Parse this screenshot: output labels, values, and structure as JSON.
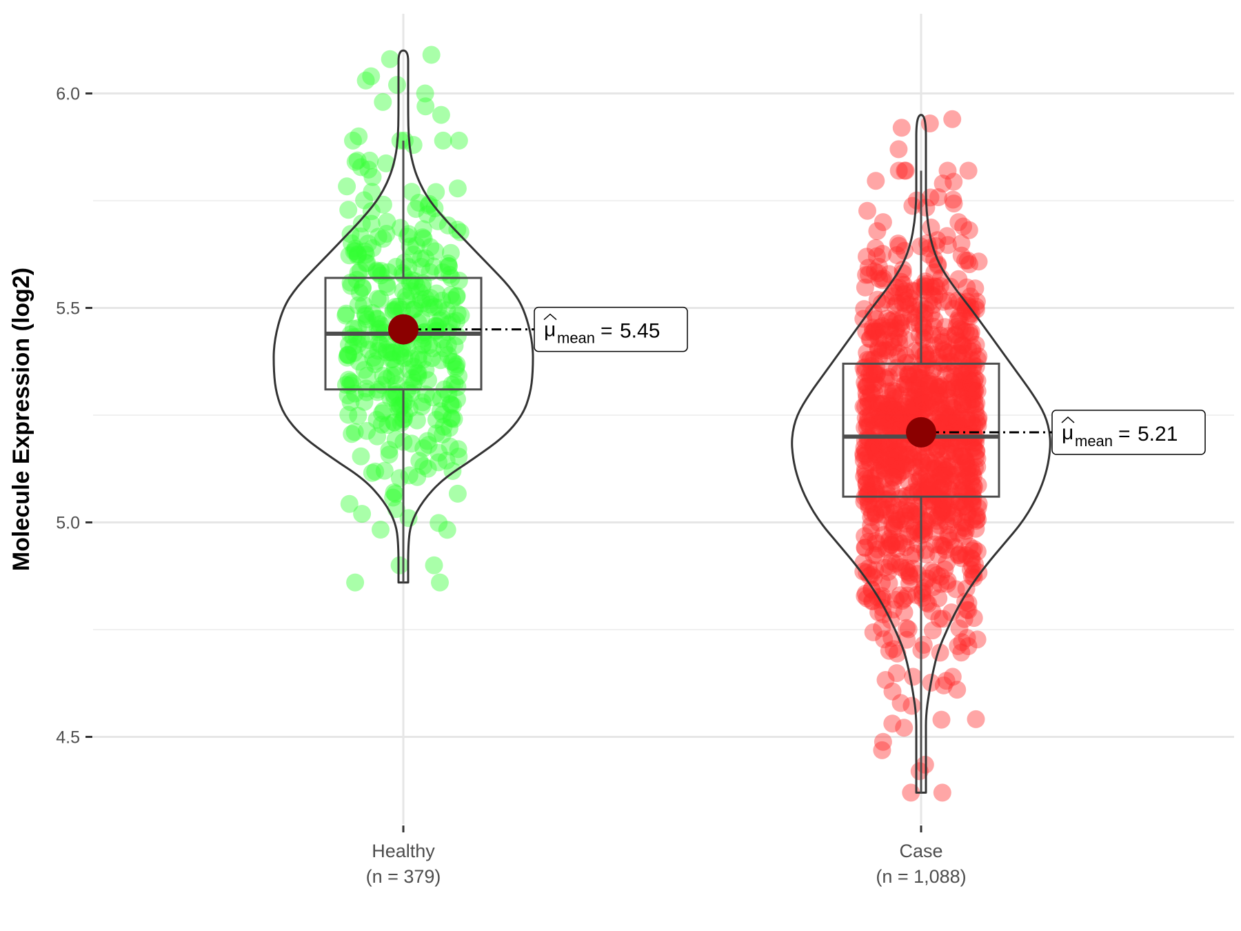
{
  "chart_data": {
    "type": "violin",
    "ylabel": "Molecule Expression (log2)",
    "xlabel": "",
    "ylim": [
      4.3,
      6.18
    ],
    "yticks": [
      4.5,
      5.0,
      5.5,
      6.0
    ],
    "ytick_labels": [
      "4.5",
      "5.0",
      "5.5",
      "6.0"
    ],
    "grid": true,
    "categories": [
      "Healthy",
      "Case"
    ],
    "groups": [
      {
        "name": "Healthy",
        "count_label": "(n = 379)",
        "n": 379,
        "color": "#33ff33",
        "box": {
          "min": 4.86,
          "q1": 5.31,
          "median": 5.44,
          "q3": 5.57,
          "max": 5.89
        },
        "mean": 5.45,
        "mean_label": "5.45",
        "violin_range": [
          4.86,
          6.1
        ],
        "density": [
          [
            4.86,
            0.02
          ],
          [
            4.95,
            0.02
          ],
          [
            5.0,
            0.06
          ],
          [
            5.05,
            0.15
          ],
          [
            5.1,
            0.3
          ],
          [
            5.15,
            0.55
          ],
          [
            5.2,
            0.78
          ],
          [
            5.25,
            0.92
          ],
          [
            5.3,
            0.98
          ],
          [
            5.35,
            1.0
          ],
          [
            5.42,
            1.0
          ],
          [
            5.5,
            0.93
          ],
          [
            5.55,
            0.82
          ],
          [
            5.6,
            0.66
          ],
          [
            5.65,
            0.5
          ],
          [
            5.7,
            0.34
          ],
          [
            5.75,
            0.2
          ],
          [
            5.8,
            0.11
          ],
          [
            5.85,
            0.06
          ],
          [
            5.9,
            0.04
          ],
          [
            5.95,
            0.03
          ],
          [
            6.0,
            0.02
          ],
          [
            6.05,
            0.02
          ],
          [
            6.1,
            0.02
          ]
        ],
        "outliers": [
          6.09,
          6.08,
          6.04,
          6.03,
          6.02,
          6.0,
          5.98,
          5.97,
          5.95,
          5.9,
          5.88,
          4.9,
          4.9,
          4.86,
          5.01,
          5.02,
          5.07
        ]
      },
      {
        "name": "Case",
        "count_label": "(n = 1,088)",
        "n": 1088,
        "color": "#ff2a2a",
        "box": {
          "min": 4.37,
          "q1": 5.06,
          "median": 5.2,
          "q3": 5.37,
          "max": 5.82
        },
        "mean": 5.21,
        "mean_label": "5.21",
        "violin_range": [
          4.37,
          5.95
        ],
        "density": [
          [
            4.37,
            0.01
          ],
          [
            4.5,
            0.015
          ],
          [
            4.55,
            0.03
          ],
          [
            4.6,
            0.06
          ],
          [
            4.65,
            0.09
          ],
          [
            4.7,
            0.13
          ],
          [
            4.75,
            0.2
          ],
          [
            4.8,
            0.28
          ],
          [
            4.85,
            0.38
          ],
          [
            4.9,
            0.5
          ],
          [
            4.95,
            0.64
          ],
          [
            5.0,
            0.78
          ],
          [
            5.05,
            0.88
          ],
          [
            5.1,
            0.95
          ],
          [
            5.15,
            0.99
          ],
          [
            5.2,
            1.0
          ],
          [
            5.25,
            0.96
          ],
          [
            5.3,
            0.86
          ],
          [
            5.35,
            0.74
          ],
          [
            5.4,
            0.62
          ],
          [
            5.45,
            0.5
          ],
          [
            5.5,
            0.38
          ],
          [
            5.55,
            0.25
          ],
          [
            5.6,
            0.14
          ],
          [
            5.65,
            0.08
          ],
          [
            5.7,
            0.05
          ],
          [
            5.75,
            0.03
          ],
          [
            5.8,
            0.025
          ],
          [
            5.85,
            0.02
          ],
          [
            5.95,
            0.01
          ]
        ],
        "outliers": [
          5.94,
          5.93,
          5.92,
          5.87,
          5.79,
          4.54,
          4.42,
          4.37,
          4.64,
          4.62,
          4.61,
          4.64
        ]
      }
    ]
  }
}
